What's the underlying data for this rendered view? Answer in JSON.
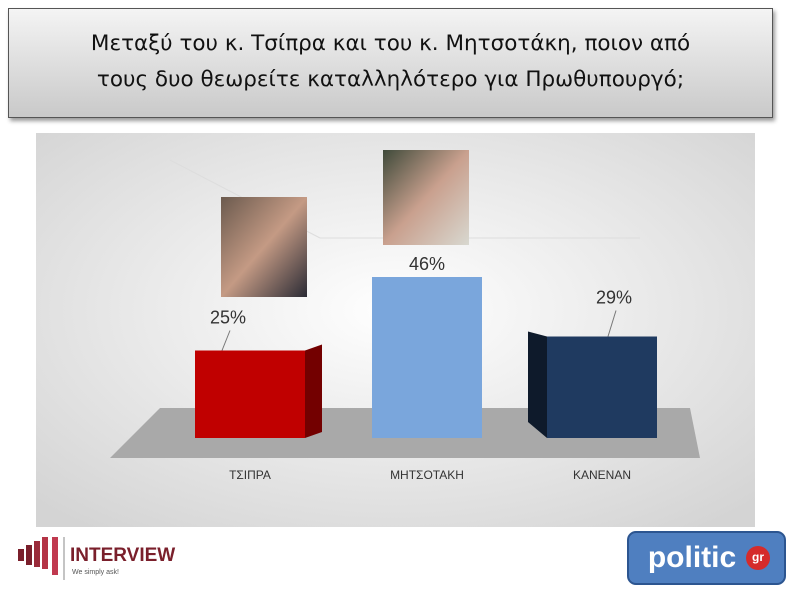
{
  "chart_data": {
    "type": "bar3d",
    "title": [
      "Μεταξύ του κ. Τσίπρα και του κ. Μητσοτάκη, ποιον από",
      "τους δυο θεωρείτε καταλληλότερο για Πρωθυπουργό;"
    ],
    "categories": [
      "ΤΣΙΠΡΑ",
      "ΜΗΤΣΟΤΑΚΗ",
      "ΚΑΝΕΝΑΝ"
    ],
    "values": [
      25,
      46,
      29
    ],
    "value_labels": [
      "25%",
      "46%",
      "29%"
    ],
    "colors": [
      "#c00000",
      "#7aa6dc",
      "#1f3a60"
    ]
  },
  "logos": {
    "interview": {
      "name": "INTERVIEW",
      "slogan": "We simply ask!"
    },
    "politic": {
      "name": "politic",
      "suffix": "gr"
    }
  }
}
